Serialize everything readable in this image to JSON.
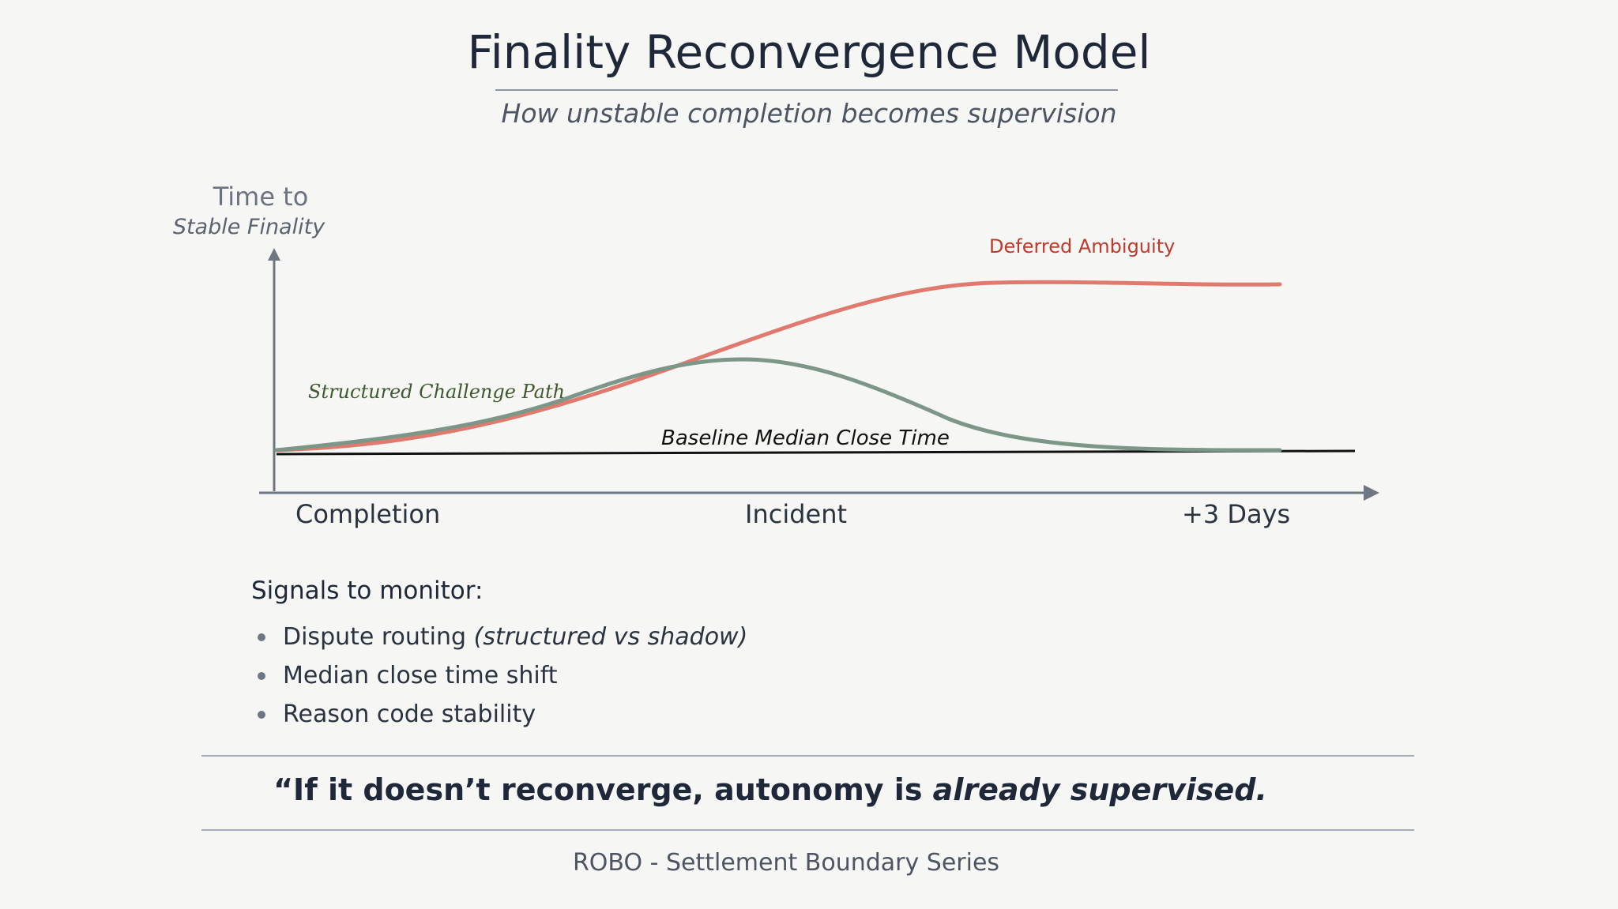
{
  "title": "Finality Reconvergence Model",
  "subtitle": "How unstable completion becomes supervision",
  "y_axis": {
    "line1": "Time to",
    "line2": "Stable Finality"
  },
  "x_axis": {
    "ticks": [
      "Completion",
      "Incident",
      "+3 Days"
    ]
  },
  "series_labels": {
    "structured": "Structured Challenge Path",
    "deferred": "Deferred Ambiguity",
    "baseline": "Baseline Median Close Time"
  },
  "colors": {
    "structured": "#7c9688",
    "deferred": "#e07a6e",
    "baseline": "#111111",
    "structured_label": "#3e5a2e",
    "deferred_label": "#c0392b",
    "axis": "#6f7784"
  },
  "signals": {
    "heading": "Signals to monitor:",
    "items": [
      {
        "text": "Dispute routing ",
        "emphasis": "(structured vs shadow)"
      },
      {
        "text": "Median close time shift",
        "emphasis": ""
      },
      {
        "text": "Reason code stability",
        "emphasis": ""
      }
    ]
  },
  "quote": {
    "part1": "“If it doesn’t reconverge, autonomy is ",
    "part2": "already supervised."
  },
  "footer": "ROBO - Settlement Boundary Series"
}
